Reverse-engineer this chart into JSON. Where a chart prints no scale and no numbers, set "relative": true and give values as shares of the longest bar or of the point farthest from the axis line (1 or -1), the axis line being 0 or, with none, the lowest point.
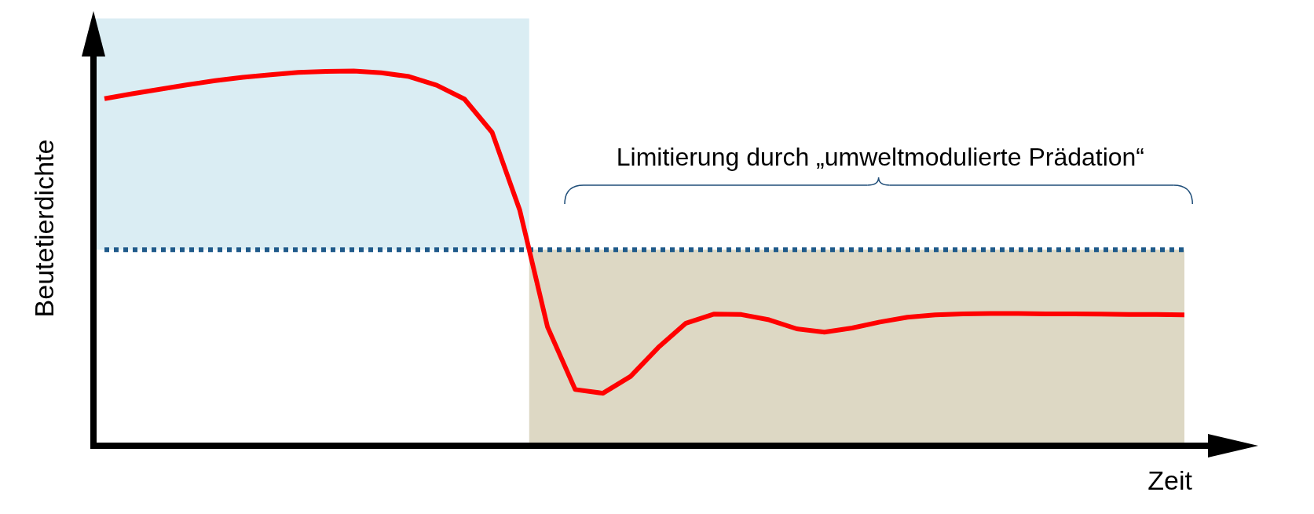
{
  "chart_data": {
    "type": "line",
    "relative": true,
    "xlabel": "Zeit",
    "ylabel": "Beutetierdichte",
    "legend": false,
    "marker": "none",
    "line_style": "solid",
    "annotations": [
      "Limitierung durch „umweltmodulierte Prädation“"
    ],
    "categories": [
      null,
      null,
      null,
      null,
      null,
      null,
      null,
      null,
      null,
      null,
      null,
      null,
      null,
      null,
      null,
      null,
      null,
      null,
      null,
      null,
      null,
      null,
      null,
      null,
      null,
      null,
      null,
      null,
      null,
      null,
      null,
      null,
      null,
      null,
      null,
      null,
      null,
      null,
      null,
      null
    ],
    "series": [
      {
        "color": "#ff0000",
        "values": [
          0.926,
          0.939,
          0.951,
          0.963,
          0.974,
          0.983,
          0.99,
          0.996,
          0.999,
          1.0,
          0.995,
          0.985,
          0.962,
          0.925,
          0.836,
          0.628,
          0.317,
          0.15,
          0.14,
          0.185,
          0.262,
          0.327,
          0.351,
          0.35,
          0.336,
          0.312,
          0.303,
          0.314,
          0.33,
          0.343,
          0.349,
          0.352,
          0.353,
          0.353,
          0.352,
          0.352,
          0.351,
          0.35,
          0.35,
          0.349
        ]
      }
    ],
    "ref_lines": [
      {
        "axis": "y",
        "value": 0.523,
        "color": "#1f5a8a",
        "line_style": "dotted"
      }
    ],
    "bands": [
      {
        "axis": "y",
        "from": 0.523,
        "to": 1.14,
        "color": "#daedf3"
      },
      {
        "axis": "y",
        "from": 0,
        "to": 0.523,
        "color": "#ddd8c4"
      }
    ]
  }
}
